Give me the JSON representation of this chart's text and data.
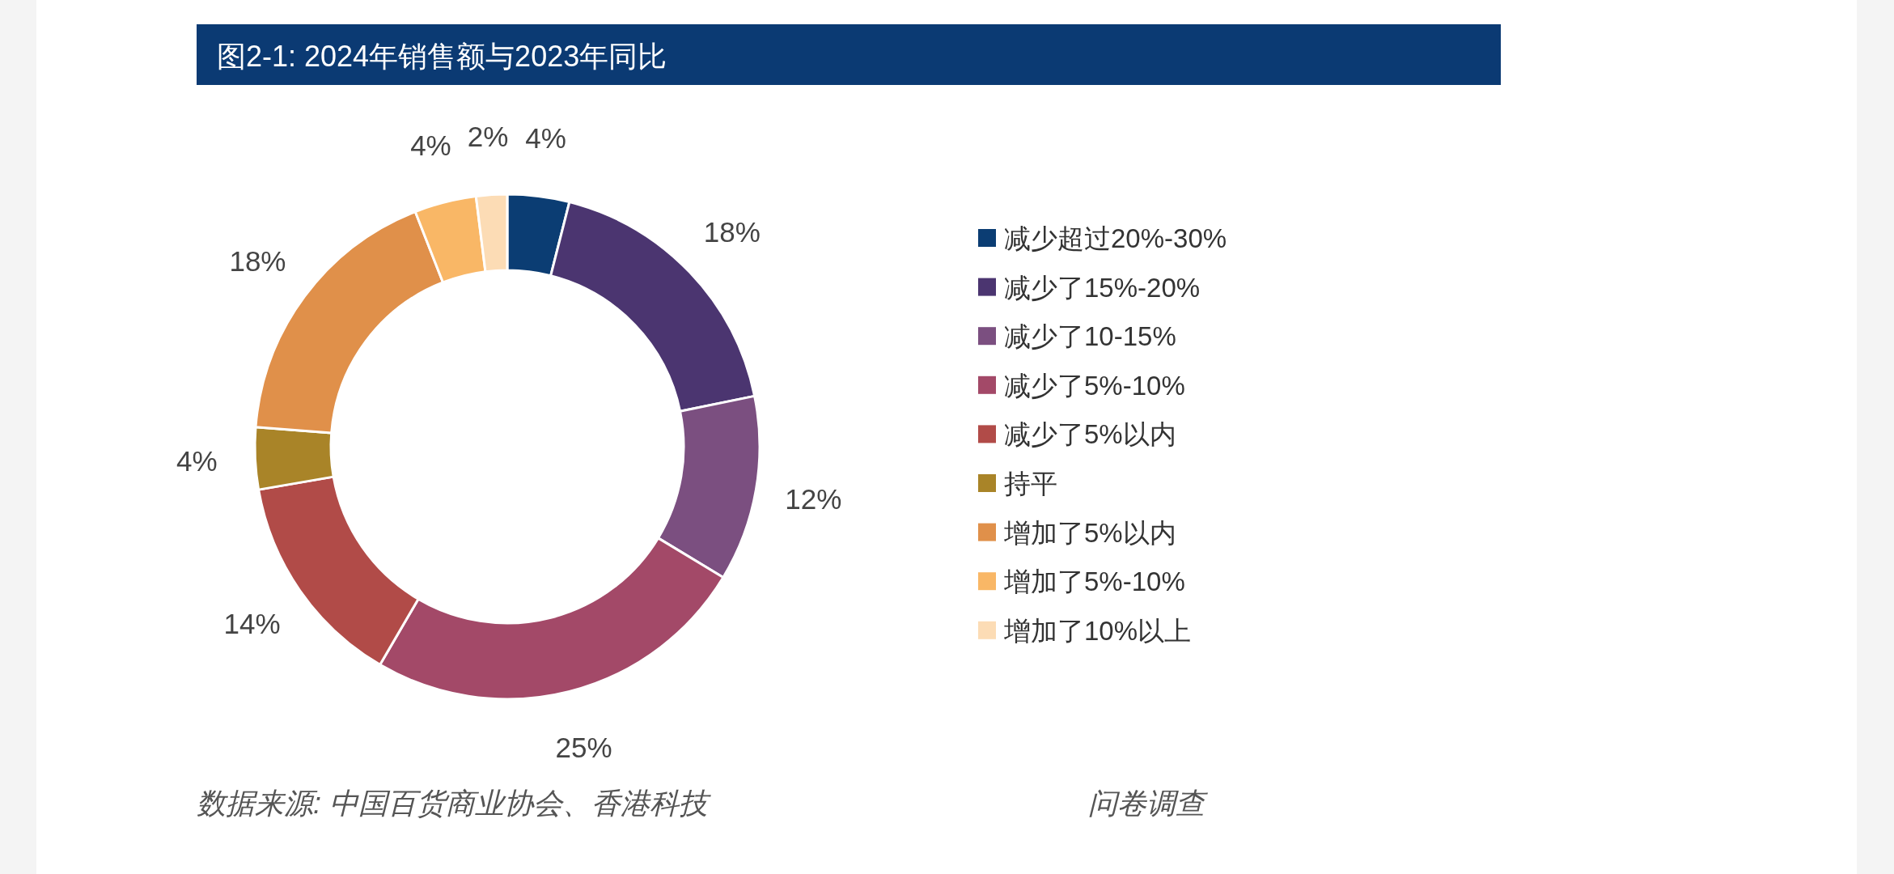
{
  "chart_data": {
    "type": "donut",
    "title": "图2-1: 2024年销售额与2023年同比",
    "categories": [
      "减少超过20%-30%",
      "减少了15%-20%",
      "减少了10-15%",
      "减少了5%-10%",
      "减少了5%以内",
      "持平",
      "增加了5%以内",
      "增加了5%-10%",
      "增加了10%以上"
    ],
    "values": [
      4,
      18,
      12,
      25,
      14,
      4,
      18,
      4,
      2
    ],
    "value_labels": [
      "4%",
      "18%",
      "12%",
      "25%",
      "14%",
      "4%",
      "18%",
      "4%",
      "2%"
    ],
    "colors": [
      "#0b3d73",
      "#4b3570",
      "#7b4f80",
      "#a34968",
      "#b14b48",
      "#a98428",
      "#e0904a",
      "#f9b766",
      "#fcdcb5"
    ],
    "legend": "right",
    "annotations": [
      "数据来源: 中国百货商业协会、香港科技",
      "问卷调查"
    ]
  }
}
